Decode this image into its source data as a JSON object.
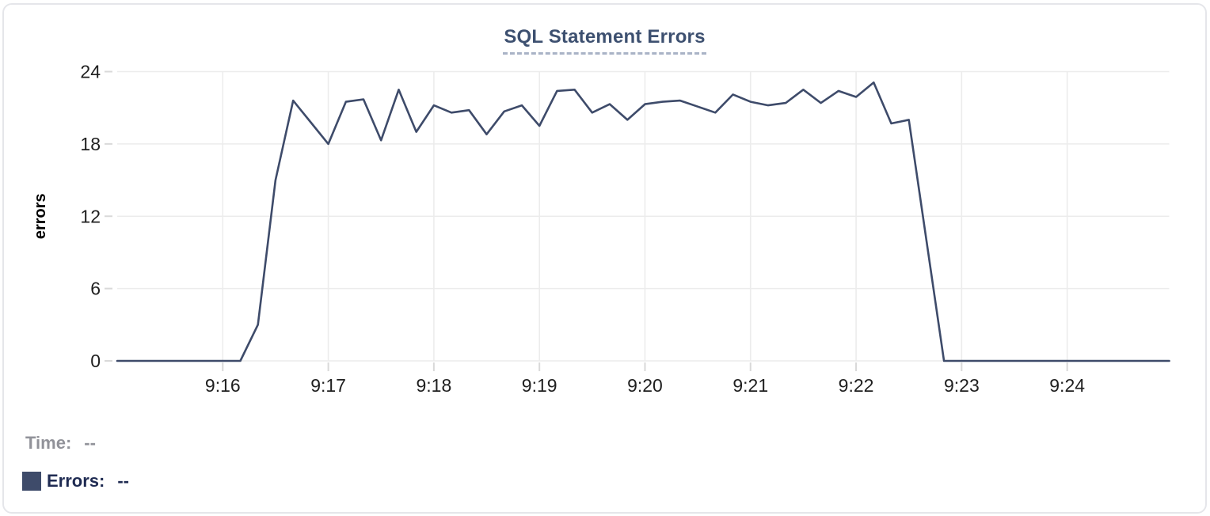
{
  "card": {
    "border_color": "#e5e6ea",
    "background": "#ffffff"
  },
  "chart_data": {
    "type": "line",
    "title": "SQL Statement Errors",
    "xlabel": "",
    "ylabel": "errors",
    "ylim": [
      0,
      24
    ],
    "y_ticks": [
      0,
      6,
      12,
      18,
      24
    ],
    "x_ticks": [
      "9:16",
      "9:17",
      "9:18",
      "9:19",
      "9:20",
      "9:21",
      "9:22",
      "9:23",
      "9:24"
    ],
    "x_range": [
      "9:15:00",
      "9:24:58"
    ],
    "grid": true,
    "legend_position": "bottom-left",
    "sample_interval_seconds": 10,
    "series": [
      {
        "name": "Errors",
        "color": "#3e4b6a",
        "start": "9:15:00",
        "values": [
          0,
          0,
          0,
          0,
          0,
          0,
          0,
          0,
          3,
          15,
          21.6,
          19.8,
          18,
          21.5,
          21.7,
          18.3,
          22.5,
          19,
          21.2,
          20.6,
          20.8,
          18.8,
          20.7,
          21.2,
          19.5,
          22.4,
          22.5,
          20.6,
          21.3,
          20,
          21.3,
          21.5,
          21.6,
          21.1,
          20.6,
          22.1,
          21.5,
          21.2,
          21.4,
          22.5,
          21.4,
          22.4,
          21.9,
          23.1,
          19.7,
          20,
          10,
          0,
          0,
          0,
          0,
          0,
          0,
          0,
          0,
          0,
          0,
          0,
          0,
          0
        ]
      }
    ],
    "colors": {
      "grid": "#ececec",
      "tick": "#d9d9d9",
      "axis_label": "#1f1f1f",
      "axis_title": "#000000",
      "title": "#3d5070",
      "title_underline": "#a9b3c6"
    }
  },
  "readout": {
    "time_label": "Time:",
    "time_value": "--",
    "errors_label": "Errors:",
    "errors_value": "--",
    "swatch_color": "#3e4b6a"
  }
}
